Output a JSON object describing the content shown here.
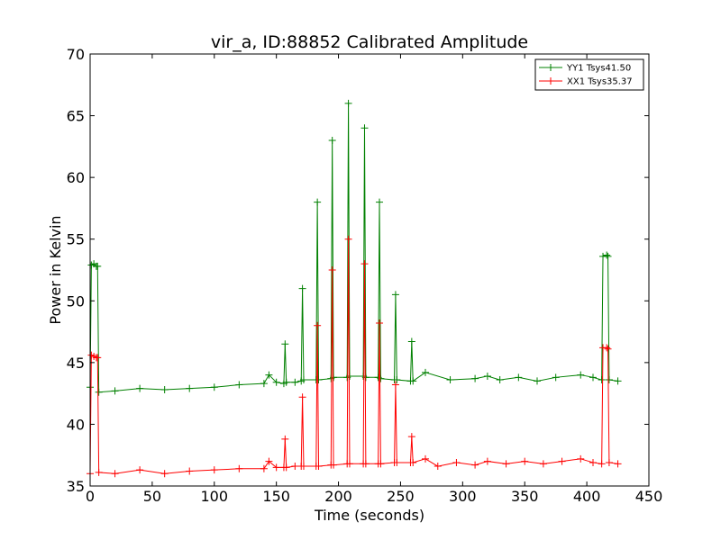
{
  "chart_data": {
    "type": "line",
    "title": "vir_a, ID:88852 Calibrated Amplitude",
    "xlabel": "Time (seconds)",
    "ylabel": "Power in Kelvin",
    "xlim": [
      0,
      450
    ],
    "ylim": [
      35,
      70
    ],
    "xticks": [
      0,
      50,
      100,
      150,
      200,
      250,
      300,
      350,
      400,
      450
    ],
    "yticks": [
      35,
      40,
      45,
      50,
      55,
      60,
      65,
      70
    ],
    "grid": false,
    "legend_position": "top-right",
    "series": [
      {
        "name": "YY1 Tsys41.50",
        "color": "#008000",
        "marker": "+",
        "points": [
          [
            0,
            43.0
          ],
          [
            1,
            52.9
          ],
          [
            3,
            53.0
          ],
          [
            5,
            52.8
          ],
          [
            6,
            52.8
          ],
          [
            7,
            42.6
          ],
          [
            20,
            42.7
          ],
          [
            40,
            42.9
          ],
          [
            60,
            42.8
          ],
          [
            80,
            42.9
          ],
          [
            100,
            43.0
          ],
          [
            120,
            43.2
          ],
          [
            140,
            43.3
          ],
          [
            144,
            44.0
          ],
          [
            150,
            43.4
          ],
          [
            156,
            43.3
          ],
          [
            157,
            46.5
          ],
          [
            158,
            43.4
          ],
          [
            165,
            43.4
          ],
          [
            170,
            43.5
          ],
          [
            171,
            51.0
          ],
          [
            172,
            43.6
          ],
          [
            182,
            43.6
          ],
          [
            183,
            58.0
          ],
          [
            184,
            43.6
          ],
          [
            194,
            43.7
          ],
          [
            195,
            63.0
          ],
          [
            196,
            43.8
          ],
          [
            207,
            43.8
          ],
          [
            208,
            66.0
          ],
          [
            209,
            43.9
          ],
          [
            220,
            43.9
          ],
          [
            221,
            64.0
          ],
          [
            222,
            43.8
          ],
          [
            232,
            43.8
          ],
          [
            233,
            58.0
          ],
          [
            234,
            43.7
          ],
          [
            245,
            43.6
          ],
          [
            246,
            50.5
          ],
          [
            247,
            43.6
          ],
          [
            258,
            43.5
          ],
          [
            259,
            46.7
          ],
          [
            260,
            43.5
          ],
          [
            270,
            44.2
          ],
          [
            290,
            43.6
          ],
          [
            310,
            43.7
          ],
          [
            320,
            43.9
          ],
          [
            330,
            43.6
          ],
          [
            345,
            43.8
          ],
          [
            360,
            43.5
          ],
          [
            375,
            43.8
          ],
          [
            395,
            44.0
          ],
          [
            405,
            43.8
          ],
          [
            412,
            43.6
          ],
          [
            413,
            53.6
          ],
          [
            416,
            53.7
          ],
          [
            417,
            53.6
          ],
          [
            418,
            43.6
          ],
          [
            425,
            43.5
          ]
        ]
      },
      {
        "name": "XX1 Tsys35.37",
        "color": "#ff0000",
        "marker": "+",
        "points": [
          [
            0,
            36.0
          ],
          [
            1,
            45.6
          ],
          [
            3,
            45.5
          ],
          [
            5,
            45.4
          ],
          [
            6,
            45.4
          ],
          [
            7,
            36.1
          ],
          [
            20,
            36.0
          ],
          [
            40,
            36.3
          ],
          [
            60,
            36.0
          ],
          [
            80,
            36.2
          ],
          [
            100,
            36.3
          ],
          [
            120,
            36.4
          ],
          [
            140,
            36.4
          ],
          [
            144,
            37.0
          ],
          [
            150,
            36.5
          ],
          [
            156,
            36.5
          ],
          [
            157,
            38.8
          ],
          [
            158,
            36.5
          ],
          [
            165,
            36.6
          ],
          [
            170,
            36.6
          ],
          [
            171,
            42.2
          ],
          [
            172,
            36.6
          ],
          [
            182,
            36.6
          ],
          [
            183,
            48.0
          ],
          [
            184,
            36.6
          ],
          [
            194,
            36.7
          ],
          [
            195,
            52.5
          ],
          [
            196,
            36.7
          ],
          [
            207,
            36.8
          ],
          [
            208,
            55.0
          ],
          [
            209,
            36.8
          ],
          [
            220,
            36.8
          ],
          [
            221,
            53.0
          ],
          [
            222,
            36.8
          ],
          [
            232,
            36.8
          ],
          [
            233,
            48.2
          ],
          [
            234,
            36.8
          ],
          [
            245,
            36.9
          ],
          [
            246,
            43.2
          ],
          [
            247,
            36.9
          ],
          [
            258,
            36.9
          ],
          [
            259,
            39.0
          ],
          [
            260,
            36.9
          ],
          [
            270,
            37.2
          ],
          [
            280,
            36.6
          ],
          [
            295,
            36.9
          ],
          [
            310,
            36.7
          ],
          [
            320,
            37.0
          ],
          [
            335,
            36.8
          ],
          [
            350,
            37.0
          ],
          [
            365,
            36.8
          ],
          [
            380,
            37.0
          ],
          [
            395,
            37.2
          ],
          [
            405,
            36.9
          ],
          [
            412,
            36.8
          ],
          [
            413,
            46.2
          ],
          [
            416,
            46.2
          ],
          [
            417,
            46.1
          ],
          [
            418,
            36.9
          ],
          [
            425,
            36.8
          ]
        ]
      }
    ]
  }
}
